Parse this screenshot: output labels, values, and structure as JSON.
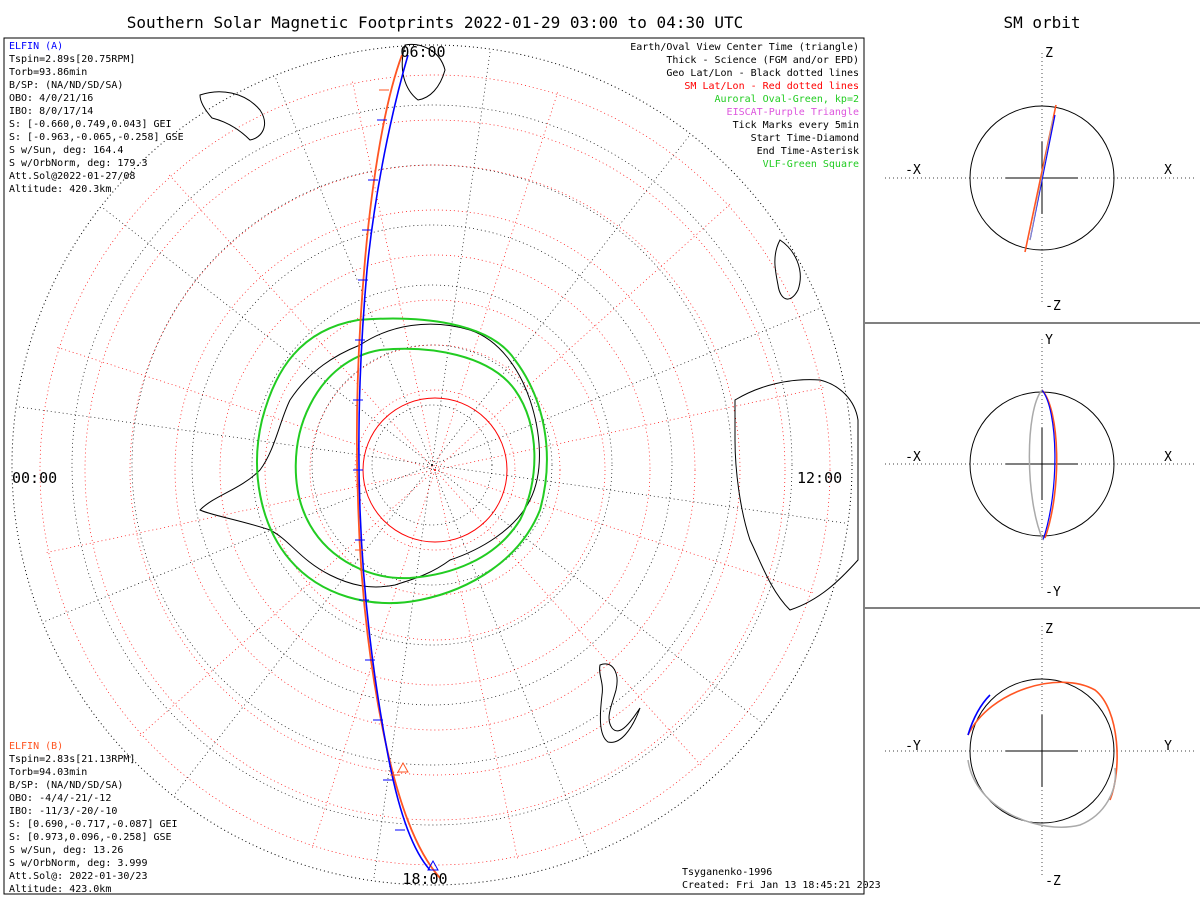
{
  "title": "Southern Solar Magnetic Footprints 2022-01-29 03:00 to 04:30 UTC",
  "orbit_title": "SM orbit",
  "mlt_labels": {
    "top": "06:00",
    "left": "00:00",
    "right": "12:00",
    "bottom": "18:00"
  },
  "probe_a": {
    "name": "ELFIN (A)",
    "color": "#0000ff",
    "lines": [
      "Tspin=2.89s[20.75RPM]",
      "Torb=93.86min",
      "B/SP: (NA/ND/SD/SA)",
      "OBO: 4/0/21/16",
      "IBO: 8/0/17/14",
      "S: [-0.660,0.749,0.043] GEI",
      "S: [-0.963,-0.065,-0.258] GSE",
      "S w/Sun, deg: 164.4",
      "S w/OrbNorm, deg: 179.3",
      "Att.Sol@2022-01-27/08",
      "Altitude: 420.3km"
    ]
  },
  "probe_b": {
    "name": "ELFIN (B)",
    "color": "#ff5522",
    "lines": [
      "Tspin=2.83s[21.13RPM]",
      "Torb=94.03min",
      "B/SP: (NA/ND/SD/SA)",
      "OBO: -4/4/-21/-12",
      "IBO: -11/3/-20/-10",
      "S: [0.690,-0.717,-0.087] GEI",
      "S: [0.973,0.096,-0.258] GSE",
      "S w/Sun, deg: 13.26",
      "S w/OrbNorm, deg: 3.999",
      "Att.Sol@: 2022-01-30/23",
      "Altitude: 423.0km"
    ]
  },
  "legend": [
    {
      "text": "Earth/Oval View Center Time (triangle)",
      "color": "#000000"
    },
    {
      "text": "Thick - Science (FGM and/or EPD)",
      "color": "#000000"
    },
    {
      "text": "Geo Lat/Lon - Black dotted lines",
      "color": "#000000"
    },
    {
      "text": "SM Lat/Lon - Red dotted lines",
      "color": "#ff0000"
    },
    {
      "text": "Auroral Oval-Green, kp=2",
      "color": "#22cc22"
    },
    {
      "text": "EISCAT-Purple Triangle",
      "color": "#dd55dd"
    },
    {
      "text": "Tick Marks every 5min",
      "color": "#000000"
    },
    {
      "text": "Start Time-Diamond",
      "color": "#000000"
    },
    {
      "text": "End Time-Asterisk",
      "color": "#000000"
    },
    {
      "text": "VLF-Green Square",
      "color": "#22cc22"
    }
  ],
  "footer": {
    "model": "Tsyganenko-1996",
    "created": "Created: Fri Jan 13 18:45:21 2023"
  },
  "orbit_panels": [
    {
      "top": "Z",
      "bottom": "-Z",
      "left": "-X",
      "right": "X"
    },
    {
      "top": "Y",
      "bottom": "-Y",
      "left": "-X",
      "right": "X"
    },
    {
      "top": "Z",
      "bottom": "-Z",
      "left": "-Y",
      "right": "Y"
    }
  ],
  "colors": {
    "probe_a": "#0000ff",
    "probe_b": "#ff5522",
    "sm_grid": "#ff0000",
    "oval": "#22cc22",
    "orbit_shadow": "#aaaaaa"
  }
}
